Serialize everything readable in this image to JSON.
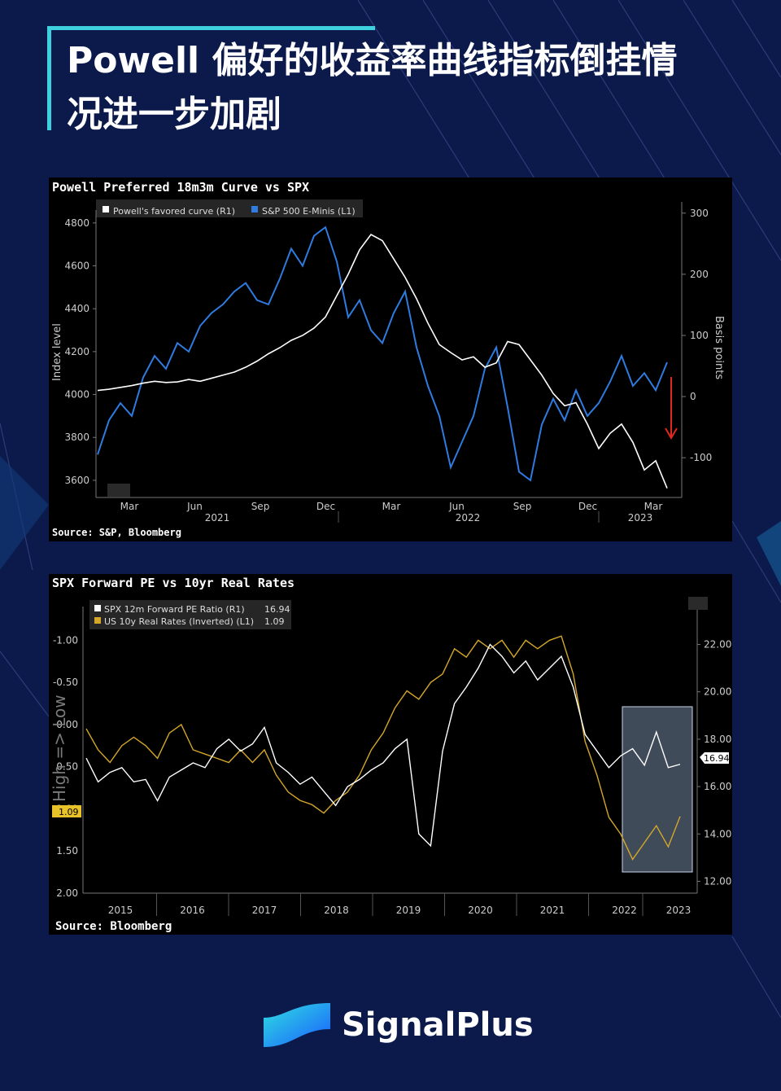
{
  "title": "Powell 偏好的收益率曲线指标倒挂情况进一步加剧",
  "brand": "SignalPlus",
  "colors": {
    "background": "#0b1a4a",
    "accent": "#3fd0e0",
    "white_series": "#ffffff",
    "blue_series": "#2f7be0",
    "gold_series": "#d4a62a",
    "arrow": "#e0281e"
  },
  "chart_data": [
    {
      "type": "line",
      "title": "Powell Preferred 18m3m Curve vs SPX",
      "source": "Source: S&P, Bloomberg",
      "ylabel_left": "Index level",
      "ylabel_right": "Basis points",
      "ylim_left": [
        3520,
        4860
      ],
      "ylim_right": [
        -165,
        305
      ],
      "yticks_left": [
        "4800",
        "4600",
        "4400",
        "4200",
        "4000",
        "3800",
        "3600"
      ],
      "yticks_right": [
        "300",
        "200",
        "100",
        "0",
        "-100"
      ],
      "xticks_month": [
        "Mar",
        "Jun",
        "Sep",
        "Dec",
        "Mar",
        "Jun",
        "Sep",
        "Dec",
        "Mar"
      ],
      "xticks_year": [
        "2021",
        "2022",
        "2023"
      ],
      "series": [
        {
          "name": "Powell's favored curve (R1)",
          "axis": "right",
          "values": [
            10,
            12,
            15,
            18,
            22,
            25,
            23,
            24,
            28,
            25,
            30,
            35,
            40,
            48,
            58,
            70,
            80,
            92,
            100,
            112,
            130,
            165,
            200,
            240,
            265,
            255,
            225,
            195,
            160,
            120,
            85,
            72,
            60,
            65,
            48,
            55,
            90,
            85,
            60,
            35,
            5,
            -15,
            -10,
            -45,
            -85,
            -60,
            -45,
            -75,
            -120,
            -105,
            -150
          ]
        },
        {
          "name": "S&P 500 E-Minis (L1)",
          "axis": "left",
          "values": [
            3720,
            3880,
            3960,
            3900,
            4080,
            4180,
            4120,
            4240,
            4200,
            4320,
            4380,
            4420,
            4480,
            4520,
            4440,
            4420,
            4540,
            4680,
            4600,
            4740,
            4780,
            4620,
            4360,
            4440,
            4300,
            4240,
            4380,
            4480,
            4220,
            4040,
            3900,
            3660,
            3780,
            3900,
            4120,
            4220,
            3940,
            3640,
            3600,
            3860,
            3980,
            3880,
            4020,
            3900,
            3960,
            4060,
            4180,
            4040,
            4100,
            4020,
            4150
          ]
        }
      ],
      "legend": "top-left",
      "annotation": "red-down-arrow"
    },
    {
      "type": "line",
      "title": "SPX Forward PE vs 10yr Real Rates",
      "source": "Source: Bloomberg",
      "ylabel_left": "High => Low",
      "ylim_left": [
        2.0,
        -1.4
      ],
      "ylim_right": [
        11.5,
        23.6
      ],
      "yticks_left": [
        "-1.00",
        "-0.50",
        "0.00",
        "0.50",
        "1.00",
        "1.50",
        "2.00"
      ],
      "yticks_right": [
        "22.00",
        "20.00",
        "18.00",
        "16.00",
        "14.00",
        "12.00"
      ],
      "xticks_year": [
        "2015",
        "2016",
        "2017",
        "2018",
        "2019",
        "2020",
        "2021",
        "2022",
        "2023"
      ],
      "left_tag": "1.09",
      "right_tag": "16.94",
      "series": [
        {
          "name": "SPX 12m Forward PE Ratio (R1)",
          "axis": "right",
          "last": "16.94",
          "values": [
            17.2,
            16.2,
            16.6,
            16.8,
            16.2,
            16.3,
            15.4,
            16.4,
            16.7,
            17.0,
            16.8,
            17.6,
            18.0,
            17.5,
            17.8,
            18.5,
            17.0,
            16.6,
            16.1,
            16.4,
            15.8,
            15.2,
            16.0,
            16.3,
            16.7,
            17.0,
            17.6,
            18.0,
            14.0,
            13.5,
            17.5,
            19.5,
            20.2,
            21.0,
            22.0,
            21.5,
            20.8,
            21.3,
            20.5,
            21.0,
            21.5,
            20.2,
            18.2,
            17.5,
            16.8,
            17.3,
            17.6,
            16.9,
            18.3,
            16.8,
            16.94
          ]
        },
        {
          "name": "US 10y Real Rates (Inverted) (L1)",
          "axis": "left",
          "last": "1.09",
          "values": [
            0.05,
            0.3,
            0.45,
            0.25,
            0.15,
            0.25,
            0.4,
            0.1,
            0.0,
            0.3,
            0.35,
            0.4,
            0.45,
            0.3,
            0.45,
            0.3,
            0.6,
            0.8,
            0.9,
            0.95,
            1.05,
            0.9,
            0.8,
            0.6,
            0.3,
            0.1,
            -0.2,
            -0.4,
            -0.3,
            -0.5,
            -0.6,
            -0.9,
            -0.8,
            -1.0,
            -0.9,
            -1.0,
            -0.8,
            -1.0,
            -0.9,
            -1.0,
            -1.05,
            -0.6,
            0.2,
            0.6,
            1.1,
            1.3,
            1.6,
            1.4,
            1.2,
            1.45,
            1.09
          ]
        }
      ],
      "legend": "top-left",
      "highlight": "recent-window"
    }
  ]
}
